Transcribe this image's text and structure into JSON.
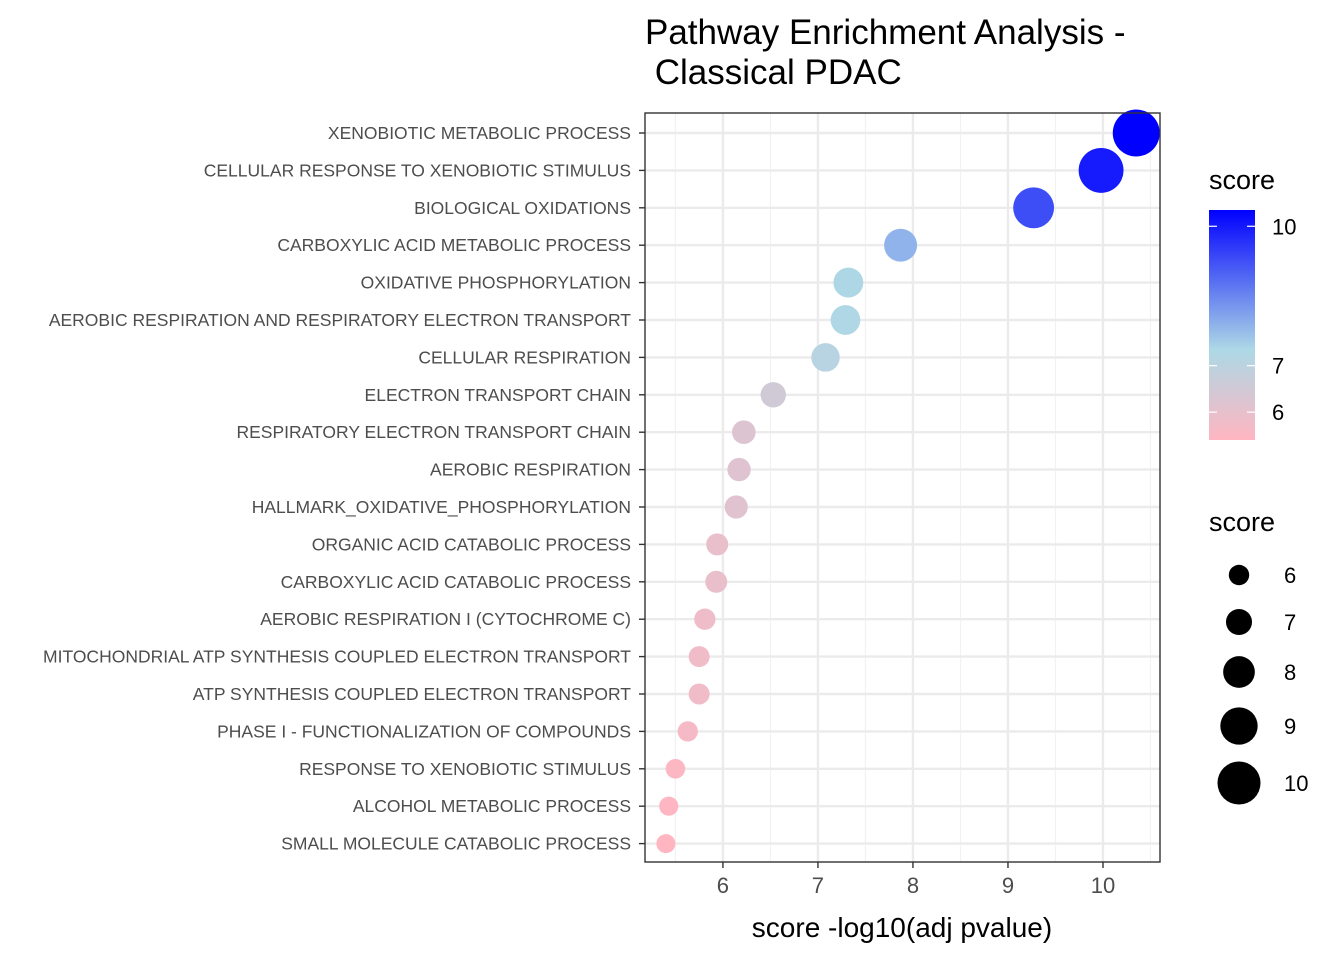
{
  "chart_data": {
    "type": "scatter",
    "title_lines": [
      "Pathway Enrichment Analysis -",
      " Classical PDAC"
    ],
    "xlabel": "score -log10(adj pvalue)",
    "ylabel": "",
    "xlim": [
      5.18,
      10.6
    ],
    "x_ticks": [
      6,
      7,
      8,
      9,
      10
    ],
    "grid": true,
    "legend_position": "right",
    "categories": [
      "XENOBIOTIC METABOLIC PROCESS",
      "CELLULAR RESPONSE TO XENOBIOTIC STIMULUS",
      "BIOLOGICAL OXIDATIONS",
      "CARBOXYLIC ACID METABOLIC PROCESS",
      "OXIDATIVE PHOSPHORYLATION",
      "AEROBIC RESPIRATION AND RESPIRATORY ELECTRON TRANSPORT",
      "CELLULAR RESPIRATION",
      "ELECTRON TRANSPORT CHAIN",
      "RESPIRATORY ELECTRON TRANSPORT CHAIN",
      "AEROBIC RESPIRATION",
      "HALLMARK_OXIDATIVE_PHOSPHORYLATION",
      "ORGANIC ACID CATABOLIC PROCESS",
      "CARBOXYLIC ACID CATABOLIC PROCESS",
      "AEROBIC RESPIRATION I (CYTOCHROME C)",
      "MITOCHONDRIAL ATP SYNTHESIS COUPLED ELECTRON TRANSPORT",
      "ATP SYNTHESIS COUPLED ELECTRON TRANSPORT",
      "PHASE I - FUNCTIONALIZATION OF COMPOUNDS",
      "RESPONSE TO XENOBIOTIC STIMULUS",
      "ALCOHOL METABOLIC PROCESS",
      "SMALL MOLECULE CATABOLIC PROCESS"
    ],
    "values": [
      10.35,
      9.98,
      9.27,
      7.87,
      7.32,
      7.29,
      7.08,
      6.53,
      6.22,
      6.17,
      6.14,
      5.94,
      5.93,
      5.81,
      5.75,
      5.75,
      5.63,
      5.5,
      5.43,
      5.4
    ],
    "color_legend": {
      "title": "score",
      "ticks": [
        6,
        7,
        10
      ],
      "range": [
        5.4,
        10.35
      ],
      "colors": {
        "low": "#ffb6c1",
        "mid": "#add8e6",
        "high": "#0000ff"
      },
      "mid_value": 7.35
    },
    "size_legend": {
      "title": "score",
      "values": [
        6,
        7,
        8,
        9,
        10
      ]
    }
  }
}
